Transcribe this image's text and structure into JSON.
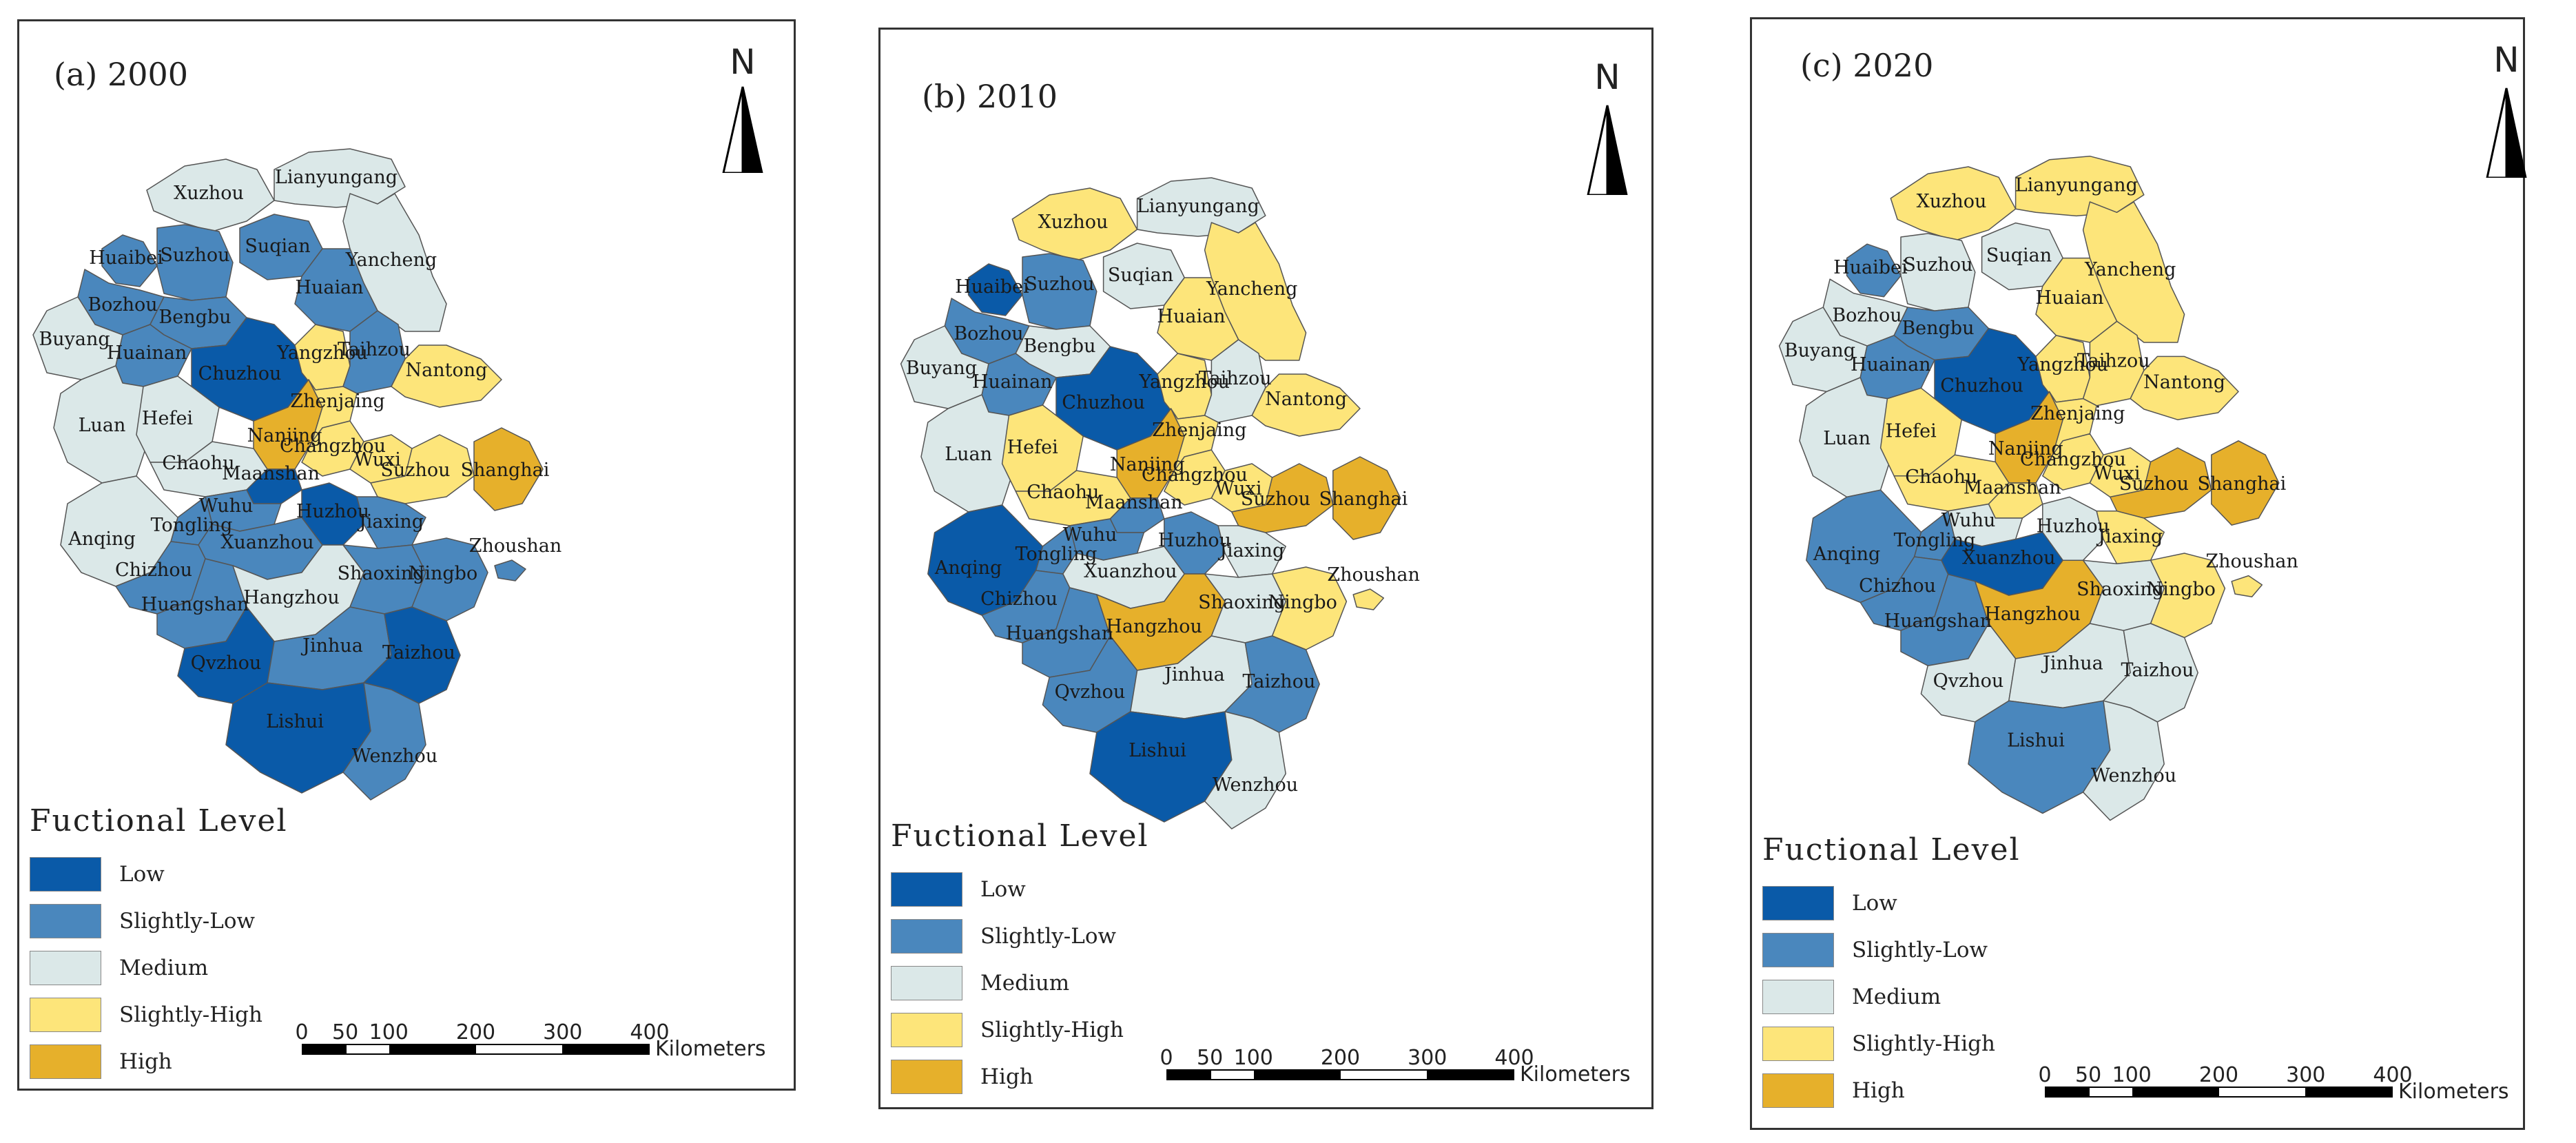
{
  "colors": {
    "low": "#0a5aa8",
    "slightly_low": "#4a87bd",
    "medium": "#dbe8e8",
    "slightly_high": "#fde57a",
    "high": "#e6b02b",
    "border": "#555555"
  },
  "legend": {
    "title": "Fuctional Level",
    "items": [
      {
        "label": "Low",
        "level": "low"
      },
      {
        "label": "Slightly-Low",
        "level": "slightly_low"
      },
      {
        "label": "Medium",
        "level": "medium"
      },
      {
        "label": "Slightly-High",
        "level": "slightly_high"
      },
      {
        "label": "High",
        "level": "high"
      }
    ]
  },
  "north_label": "N",
  "scale": {
    "ticks": [
      "0",
      "50",
      "100",
      "200",
      "300",
      "400"
    ],
    "unit": "Kilometers"
  },
  "panels": [
    {
      "title": "(a) 2000",
      "levels": {
        "Xuzhou": "medium",
        "Lianyungang": "medium",
        "Huaibei": "slightly_low",
        "Suzhou_AH": "slightly_low",
        "Suqian": "slightly_low",
        "Yancheng": "medium",
        "Bozhou": "slightly_low",
        "Huaian": "slightly_low",
        "Bengbu": "slightly_low",
        "Buyang": "medium",
        "Huainan": "slightly_low",
        "Chuzhou": "low",
        "Yangzhou": "slightly_high",
        "Taizhou_JS": "slightly_low",
        "Nantong": "slightly_high",
        "Luan": "medium",
        "Hefei": "medium",
        "Nanjing": "high",
        "Zhenjiang": "slightly_high",
        "Changzhou": "slightly_high",
        "Chaohu": "medium",
        "Maanshan": "low",
        "Wuxi": "slightly_high",
        "Suzhou_JS": "slightly_high",
        "Shanghai": "high",
        "Wuhu": "slightly_low",
        "Tongling": "slightly_low",
        "Anqing": "medium",
        "Xuanzhou": "slightly_low",
        "Huzhou": "low",
        "Jiaxing": "slightly_low",
        "Chizhou": "slightly_low",
        "Huangshan": "slightly_low",
        "Hangzhou": "medium",
        "Shaoxing": "slightly_low",
        "Ningbo": "slightly_low",
        "Zhoushan": "slightly_low",
        "Qvzhou": "low",
        "Jinhua": "slightly_low",
        "Taizhou_ZJ": "low",
        "Lishui": "low",
        "Wenzhou": "slightly_low"
      }
    },
    {
      "title": "(b) 2010",
      "levels": {
        "Xuzhou": "slightly_high",
        "Lianyungang": "medium",
        "Huaibei": "low",
        "Suzhou_AH": "slightly_low",
        "Suqian": "medium",
        "Yancheng": "slightly_high",
        "Bozhou": "slightly_low",
        "Huaian": "slightly_high",
        "Bengbu": "medium",
        "Buyang": "medium",
        "Huainan": "slightly_low",
        "Chuzhou": "low",
        "Yangzhou": "slightly_high",
        "Taizhou_JS": "medium",
        "Nantong": "slightly_high",
        "Luan": "medium",
        "Hefei": "slightly_high",
        "Nanjing": "high",
        "Zhenjiang": "slightly_high",
        "Changzhou": "slightly_high",
        "Chaohu": "slightly_high",
        "Maanshan": "slightly_low",
        "Wuxi": "slightly_high",
        "Suzhou_JS": "high",
        "Shanghai": "high",
        "Wuhu": "slightly_low",
        "Tongling": "slightly_low",
        "Anqing": "low",
        "Xuanzhou": "medium",
        "Huzhou": "slightly_low",
        "Jiaxing": "medium",
        "Chizhou": "slightly_low",
        "Huangshan": "slightly_low",
        "Hangzhou": "high",
        "Shaoxing": "medium",
        "Ningbo": "slightly_high",
        "Zhoushan": "slightly_high",
        "Qvzhou": "slightly_low",
        "Jinhua": "medium",
        "Taizhou_ZJ": "slightly_low",
        "Lishui": "low",
        "Wenzhou": "medium"
      }
    },
    {
      "title": "(c) 2020",
      "levels": {
        "Xuzhou": "slightly_high",
        "Lianyungang": "slightly_high",
        "Huaibei": "slightly_low",
        "Suzhou_AH": "medium",
        "Suqian": "medium",
        "Yancheng": "slightly_high",
        "Bozhou": "medium",
        "Huaian": "slightly_high",
        "Bengbu": "slightly_low",
        "Buyang": "medium",
        "Huainan": "slightly_low",
        "Chuzhou": "low",
        "Yangzhou": "slightly_high",
        "Taizhou_JS": "slightly_high",
        "Nantong": "slightly_high",
        "Luan": "medium",
        "Hefei": "slightly_high",
        "Nanjing": "high",
        "Zhenjiang": "slightly_high",
        "Changzhou": "slightly_high",
        "Chaohu": "slightly_high",
        "Maanshan": "slightly_high",
        "Wuxi": "slightly_high",
        "Suzhou_JS": "high",
        "Shanghai": "high",
        "Wuhu": "medium",
        "Tongling": "slightly_low",
        "Anqing": "slightly_low",
        "Xuanzhou": "low",
        "Huzhou": "medium",
        "Jiaxing": "slightly_high",
        "Chizhou": "slightly_low",
        "Huangshan": "slightly_low",
        "Hangzhou": "high",
        "Shaoxing": "medium",
        "Ningbo": "slightly_high",
        "Zhoushan": "slightly_high",
        "Qvzhou": "medium",
        "Jinhua": "medium",
        "Taizhou_ZJ": "medium",
        "Lishui": "slightly_low",
        "Wenzhou": "medium"
      }
    }
  ],
  "cities": [
    {
      "id": "Xuzhou",
      "name": "Xuzhou"
    },
    {
      "id": "Lianyungang",
      "name": "Lianyungang"
    },
    {
      "id": "Huaibei",
      "name": "Huaibei"
    },
    {
      "id": "Suzhou_AH",
      "name": "Suzhou"
    },
    {
      "id": "Suqian",
      "name": "Suqian"
    },
    {
      "id": "Yancheng",
      "name": "Yancheng"
    },
    {
      "id": "Bozhou",
      "name": "Bozhou"
    },
    {
      "id": "Huaian",
      "name": "Huaian"
    },
    {
      "id": "Bengbu",
      "name": "Bengbu"
    },
    {
      "id": "Buyang",
      "name": "Buyang"
    },
    {
      "id": "Huainan",
      "name": "Huainan"
    },
    {
      "id": "Chuzhou",
      "name": "Chuzhou"
    },
    {
      "id": "Yangzhou",
      "name": "Yangzhou"
    },
    {
      "id": "Taizhou_JS",
      "name": "Taihzou"
    },
    {
      "id": "Nantong",
      "name": "Nantong"
    },
    {
      "id": "Luan",
      "name": "Luan"
    },
    {
      "id": "Hefei",
      "name": "Hefei"
    },
    {
      "id": "Nanjing",
      "name": "Nanjing"
    },
    {
      "id": "Zhenjiang",
      "name": "Zhenjaing"
    },
    {
      "id": "Changzhou",
      "name": "Changzhou"
    },
    {
      "id": "Chaohu",
      "name": "Chaohu"
    },
    {
      "id": "Maanshan",
      "name": "Maanshan"
    },
    {
      "id": "Wuxi",
      "name": "Wuxi"
    },
    {
      "id": "Suzhou_JS",
      "name": "Suzhou"
    },
    {
      "id": "Shanghai",
      "name": "Shanghai"
    },
    {
      "id": "Wuhu",
      "name": "Wuhu"
    },
    {
      "id": "Tongling",
      "name": "Tongling"
    },
    {
      "id": "Anqing",
      "name": "Anqing"
    },
    {
      "id": "Xuanzhou",
      "name": "Xuanzhou"
    },
    {
      "id": "Huzhou",
      "name": "Huzhou"
    },
    {
      "id": "Jiaxing",
      "name": "Jiaxing"
    },
    {
      "id": "Chizhou",
      "name": "Chizhou"
    },
    {
      "id": "Huangshan",
      "name": "Huangshan"
    },
    {
      "id": "Hangzhou",
      "name": "Hangzhou"
    },
    {
      "id": "Shaoxing",
      "name": "Shaoxing"
    },
    {
      "id": "Ningbo",
      "name": "Ningbo"
    },
    {
      "id": "Zhoushan",
      "name": "Zhoushan"
    },
    {
      "id": "Qvzhou",
      "name": "Qvzhou"
    },
    {
      "id": "Jinhua",
      "name": "Jinhua"
    },
    {
      "id": "Taizhou_ZJ",
      "name": "Taizhou"
    },
    {
      "id": "Lishui",
      "name": "Lishui"
    },
    {
      "id": "Wenzhou",
      "name": "Wenzhou"
    }
  ]
}
